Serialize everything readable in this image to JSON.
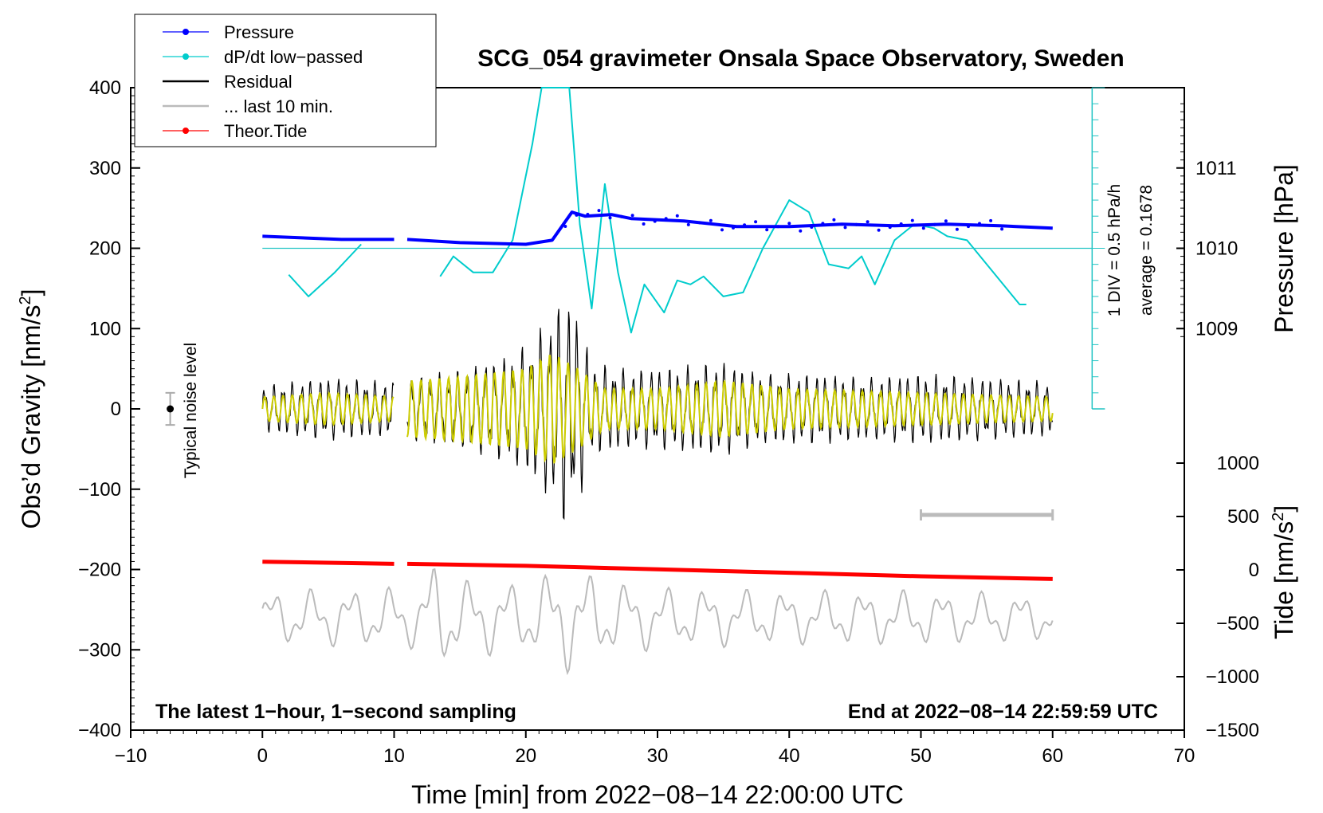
{
  "chart_data": {
    "type": "line",
    "title": "SCG_054 gravimeter Onsala Space Observatory, Sweden",
    "xlabel": "Time [min] from 2022−08−14 22:00:00 UTC",
    "ylabel_left": "Obs’d Gravity [nm/s",
    "ylabel_left_sup": "2",
    "ylabel_left_end": "]",
    "ylabel_right_pressure": "Pressure [hPa]",
    "ylabel_right_tide": "Tide [nm/s",
    "ylabel_right_tide_sup": "2",
    "ylabel_right_tide_end": "]",
    "xlim": [
      -10,
      70
    ],
    "ylim": [
      -400,
      400
    ],
    "x_ticks": [
      "−10",
      "0",
      "10",
      "20",
      "30",
      "40",
      "50",
      "60",
      "70"
    ],
    "x_tick_values": [
      -10,
      0,
      10,
      20,
      30,
      40,
      50,
      60,
      70
    ],
    "y_ticks": [
      "400",
      "300",
      "200",
      "100",
      "0",
      "−100",
      "−200",
      "−300",
      "−400"
    ],
    "y_tick_values": [
      400,
      300,
      200,
      100,
      0,
      -100,
      -200,
      -300,
      -400
    ],
    "pressure_ticks": [
      "1011",
      "1010",
      "1009"
    ],
    "pressure_tick_values": [
      1011,
      1010,
      1009
    ],
    "tide_ticks": [
      "1000",
      "500",
      "0",
      "−500",
      "−1000",
      "−1500"
    ],
    "tide_tick_values": [
      1000,
      500,
      0,
      -500,
      -1000,
      -1500
    ],
    "legend": [
      {
        "label": "Pressure",
        "color": "#0000ff",
        "style": "line-dot"
      },
      {
        "label": "dP/dt low−passed",
        "color": "#00cccc",
        "style": "line-dot"
      },
      {
        "label": "Residual",
        "color": "#000000",
        "style": "line"
      },
      {
        "label": "... last 10 min.",
        "color": "#bbbbbb",
        "style": "line"
      },
      {
        "label": "Theor.Tide",
        "color": "#ff0000",
        "style": "line-dot"
      }
    ],
    "legend_position": "top-left",
    "noise_label": "Typical noise level",
    "noise_range": [
      -20,
      20
    ],
    "dpdt_scale_label": "1 DIV = 0.5 hPa/h",
    "dpdt_average_label": "average = 0.1678",
    "bottom_left_note": "The latest 1−hour, 1−second sampling",
    "bottom_right_note": "End at 2022−08−14 22:59:59 UTC",
    "last10_bar_x": [
      50,
      60
    ],
    "series": [
      {
        "name": "Pressure",
        "color": "#0000ff",
        "unit": "hPa",
        "x": [
          0,
          3,
          6,
          10,
          11,
          15,
          20,
          22,
          23.5,
          24.5,
          26.5,
          28,
          32,
          36,
          40,
          44,
          48,
          52,
          56,
          60
        ],
        "values": [
          1010.15,
          1010.13,
          1010.11,
          1010.11,
          1010.11,
          1010.07,
          1010.05,
          1010.1,
          1010.45,
          1010.4,
          1010.42,
          1010.37,
          1010.34,
          1010.27,
          1010.27,
          1010.3,
          1010.28,
          1010.3,
          1010.28,
          1010.25
        ]
      },
      {
        "name": "dP/dt low-passed",
        "color": "#00cccc",
        "unit": "nm/s2-equivalent",
        "x": [
          2,
          3.5,
          5.5,
          7.5,
          null,
          13.5,
          14.5,
          16,
          17.5,
          19,
          20.5,
          21.2,
          22.5,
          23.3,
          24.1,
          25,
          26,
          27,
          28,
          29,
          30.5,
          31.5,
          32.5,
          33.5,
          35,
          36.5,
          38,
          40,
          41.5,
          43,
          44.5,
          45.5,
          46.5,
          48,
          49.5,
          51,
          52,
          53.5,
          55,
          56.5,
          57.5,
          58
        ],
        "values": [
          167,
          140,
          170,
          205,
          null,
          165,
          190,
          170,
          170,
          210,
          330,
          400,
          400,
          400,
          230,
          125,
          280,
          170,
          95,
          155,
          120,
          160,
          155,
          165,
          140,
          145,
          200,
          260,
          245,
          180,
          175,
          190,
          155,
          210,
          230,
          225,
          215,
          210,
          180,
          150,
          130,
          130
        ]
      },
      {
        "name": "Theor.Tide",
        "color": "#ff0000",
        "unit": "nm/s2",
        "x": [
          0,
          10,
          11,
          20,
          30,
          40,
          50,
          60
        ],
        "values": [
          77,
          57,
          57,
          38,
          5,
          -27,
          -60,
          -85
        ]
      },
      {
        "name": "Residual",
        "color": "#000000",
        "unit": "nm/s2",
        "envelope_x": [
          0,
          5,
          10,
          11,
          15,
          17,
          19,
          20.5,
          22,
          23,
          24,
          25,
          28,
          32,
          35,
          38,
          42,
          46,
          50,
          55,
          60
        ],
        "envelope_amp": [
          30,
          40,
          35,
          40,
          50,
          60,
          70,
          90,
          120,
          150,
          120,
          60,
          50,
          55,
          60,
          45,
          45,
          40,
          45,
          40,
          35
        ]
      },
      {
        "name": "Residual filtered (yellow)",
        "color": "#cccc00",
        "unit": "nm/s2",
        "envelope_x": [
          0,
          5,
          10,
          11,
          15,
          20,
          22,
          24,
          26,
          30,
          35,
          40,
          50,
          60
        ],
        "envelope_amp": [
          15,
          20,
          15,
          35,
          40,
          50,
          70,
          50,
          25,
          25,
          35,
          25,
          20,
          15
        ]
      },
      {
        "name": "... last 10 min.",
        "color": "#bbbbbb",
        "unit": "nm/s2",
        "baseline": -260,
        "envelope_x": [
          0,
          12,
          13,
          15,
          20,
          23,
          26,
          30,
          40,
          50,
          60
        ],
        "envelope_amp": [
          35,
          40,
          75,
          50,
          45,
          70,
          50,
          40,
          35,
          35,
          30
        ]
      }
    ]
  }
}
